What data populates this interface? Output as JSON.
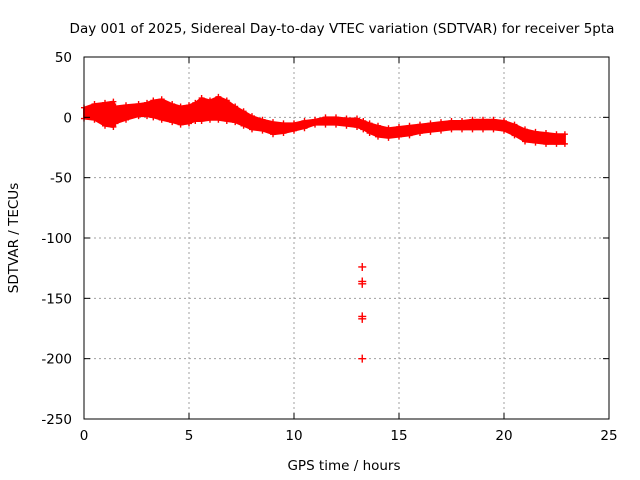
{
  "chart_data": {
    "type": "scatter",
    "title": "Day 001 of 2025, Sidereal Day-to-day VTEC variation (SDTVAR) for receiver 5pta",
    "xlabel": "GPS time / hours",
    "ylabel": "SDTVAR / TECUs",
    "xlim": [
      0,
      25
    ],
    "ylim": [
      -250,
      50
    ],
    "xticks": [
      0,
      5,
      10,
      15,
      20,
      25
    ],
    "yticks": [
      50,
      0,
      -50,
      -100,
      -150,
      -200,
      -250
    ],
    "grid": true,
    "legend": "none",
    "marker": "+",
    "series_color": "#ff0000",
    "band_top": [
      [
        0.0,
        8
      ],
      [
        0.5,
        11
      ],
      [
        1.0,
        12
      ],
      [
        1.4,
        13
      ],
      [
        1.5,
        9
      ],
      [
        2.0,
        10
      ],
      [
        2.6,
        11
      ],
      [
        3.0,
        12
      ],
      [
        3.3,
        14
      ],
      [
        3.7,
        15
      ],
      [
        4.2,
        11
      ],
      [
        4.6,
        9
      ],
      [
        5.0,
        10
      ],
      [
        5.3,
        12
      ],
      [
        5.6,
        16
      ],
      [
        6.0,
        14
      ],
      [
        6.4,
        17
      ],
      [
        6.8,
        14
      ],
      [
        7.2,
        9
      ],
      [
        7.6,
        5
      ],
      [
        8.0,
        1
      ],
      [
        8.5,
        -2
      ],
      [
        9.0,
        -4
      ],
      [
        9.5,
        -5
      ],
      [
        10.0,
        -5
      ],
      [
        10.5,
        -3
      ],
      [
        11.0,
        -2
      ],
      [
        11.5,
        0
      ],
      [
        12.0,
        0
      ],
      [
        12.5,
        -1
      ],
      [
        13.0,
        -1
      ],
      [
        13.3,
        -3
      ],
      [
        13.6,
        -5
      ],
      [
        14.0,
        -7
      ],
      [
        14.5,
        -9
      ],
      [
        15.0,
        -8
      ],
      [
        15.5,
        -7
      ],
      [
        16.0,
        -6
      ],
      [
        16.5,
        -5
      ],
      [
        17.0,
        -4
      ],
      [
        17.5,
        -3
      ],
      [
        18.0,
        -3
      ],
      [
        18.5,
        -2
      ],
      [
        19.0,
        -2
      ],
      [
        19.5,
        -2
      ],
      [
        20.0,
        -3
      ],
      [
        20.5,
        -6
      ],
      [
        21.0,
        -10
      ],
      [
        21.5,
        -12
      ],
      [
        22.0,
        -13
      ],
      [
        22.5,
        -14
      ],
      [
        22.9,
        -14
      ]
    ],
    "band_bottom": [
      [
        0.0,
        -1
      ],
      [
        0.5,
        -2
      ],
      [
        1.0,
        -7
      ],
      [
        1.4,
        -8
      ],
      [
        1.5,
        -5
      ],
      [
        2.0,
        -2
      ],
      [
        2.6,
        1
      ],
      [
        3.0,
        1
      ],
      [
        3.3,
        0
      ],
      [
        3.7,
        -2
      ],
      [
        4.2,
        -4
      ],
      [
        4.6,
        -6
      ],
      [
        5.0,
        -5
      ],
      [
        5.3,
        -3
      ],
      [
        5.6,
        -3
      ],
      [
        6.0,
        -2
      ],
      [
        6.4,
        -2
      ],
      [
        6.8,
        -3
      ],
      [
        7.2,
        -4
      ],
      [
        7.6,
        -7
      ],
      [
        8.0,
        -10
      ],
      [
        8.5,
        -11
      ],
      [
        9.0,
        -14
      ],
      [
        9.5,
        -13
      ],
      [
        10.0,
        -11
      ],
      [
        10.5,
        -9
      ],
      [
        11.0,
        -6
      ],
      [
        11.5,
        -6
      ],
      [
        12.0,
        -6
      ],
      [
        12.5,
        -7
      ],
      [
        13.0,
        -8
      ],
      [
        13.3,
        -10
      ],
      [
        13.6,
        -13
      ],
      [
        14.0,
        -16
      ],
      [
        14.5,
        -17
      ],
      [
        15.0,
        -16
      ],
      [
        15.5,
        -15
      ],
      [
        16.0,
        -13
      ],
      [
        16.5,
        -12
      ],
      [
        17.0,
        -11
      ],
      [
        17.5,
        -10
      ],
      [
        18.0,
        -10
      ],
      [
        18.5,
        -10
      ],
      [
        19.0,
        -10
      ],
      [
        19.5,
        -10
      ],
      [
        20.0,
        -11
      ],
      [
        20.5,
        -15
      ],
      [
        21.0,
        -20
      ],
      [
        21.5,
        -21
      ],
      [
        22.0,
        -22
      ],
      [
        22.5,
        -22
      ],
      [
        22.9,
        -22
      ]
    ],
    "outliers": [
      {
        "x": 13.25,
        "y": -124
      },
      {
        "x": 13.25,
        "y": -136
      },
      {
        "x": 13.25,
        "y": -138
      },
      {
        "x": 13.25,
        "y": -165
      },
      {
        "x": 13.25,
        "y": -167
      },
      {
        "x": 13.25,
        "y": -200
      }
    ]
  }
}
